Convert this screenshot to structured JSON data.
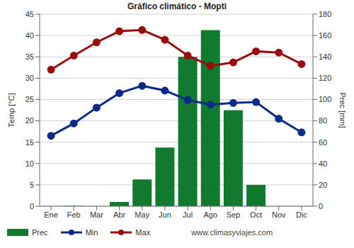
{
  "chart_data": {
    "type": "bar",
    "title": "Gráfico climático - Mopti",
    "y_label": "Temp [°C]",
    "y2_label": "Prec [mm]",
    "annotations": [
      "www.climasyviajes.com"
    ],
    "categories": [
      "Ene",
      "Feb",
      "Mar",
      "Abr",
      "May",
      "Jun",
      "Jul",
      "Ago",
      "Sep",
      "Oct",
      "Nov",
      "Dic"
    ],
    "series": [
      {
        "name": "Prec",
        "type": "bar",
        "axis": "y2",
        "color": "#117a2e",
        "values": [
          0,
          0.3,
          0,
          4,
          25,
          55,
          140,
          165,
          90,
          20,
          0,
          0
        ]
      },
      {
        "name": "Min",
        "type": "line",
        "color": "#0b2a8c",
        "marker": "circle",
        "values": [
          16.5,
          19.4,
          23.1,
          26.5,
          28.2,
          27.1,
          24.9,
          23.8,
          24.2,
          24.4,
          20.5,
          17.3
        ]
      },
      {
        "name": "Max",
        "type": "line",
        "color": "#9b0d0d",
        "marker": "circle",
        "values": [
          32,
          35.3,
          38.4,
          41,
          41.3,
          39,
          35.3,
          32.9,
          33.7,
          36.3,
          36,
          33.3
        ]
      }
    ],
    "ylim": [
      0,
      45
    ],
    "yticks": [
      0,
      5,
      10,
      15,
      20,
      25,
      30,
      35,
      40,
      45
    ],
    "y2lim": [
      0,
      180
    ],
    "y2ticks": [
      0,
      20,
      40,
      60,
      80,
      100,
      120,
      140,
      160,
      180
    ],
    "grid": true,
    "legend": "bottom"
  }
}
